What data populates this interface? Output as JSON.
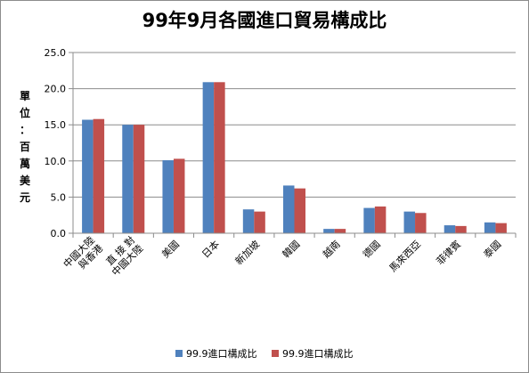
{
  "chart_data": {
    "type": "bar",
    "title": "99年9月各國進口貿易構成比",
    "ylabel": "單位：百萬美元",
    "ylabel_chars": [
      "單",
      "位",
      "：",
      "百",
      "萬",
      "美",
      "元"
    ],
    "ylim": [
      0,
      25
    ],
    "yticks": [
      "0.0",
      "5.0",
      "10.0",
      "15.0",
      "20.0",
      "25.0"
    ],
    "grid": true,
    "legend_position": "bottom",
    "categories": [
      "中國大陸 與香港",
      "直 接 對 中國大陸",
      "美國",
      "日本",
      "新加坡",
      "韓國",
      "越南",
      "德國",
      "馬來西亞",
      "菲律賓",
      "泰國"
    ],
    "category_label_lines": [
      [
        "中國大陸",
        "與香港"
      ],
      [
        "直 接 對",
        "中國大陸"
      ],
      [
        "美國"
      ],
      [
        "日本"
      ],
      [
        "新加坡"
      ],
      [
        "韓國"
      ],
      [
        "越南"
      ],
      [
        "德國"
      ],
      [
        "馬來西亞"
      ],
      [
        "菲律賓"
      ],
      [
        "泰國"
      ]
    ],
    "series": [
      {
        "name": "99.9進口構成比",
        "color": "#4f81bd",
        "values": [
          15.7,
          15.0,
          10.1,
          20.9,
          3.3,
          6.6,
          0.6,
          3.5,
          3.0,
          1.1,
          1.5
        ]
      },
      {
        "name": "99.9進口構成比",
        "color": "#c0504d",
        "values": [
          15.8,
          15.0,
          10.3,
          20.9,
          3.0,
          6.2,
          0.6,
          3.7,
          2.8,
          1.0,
          1.4
        ]
      }
    ]
  }
}
